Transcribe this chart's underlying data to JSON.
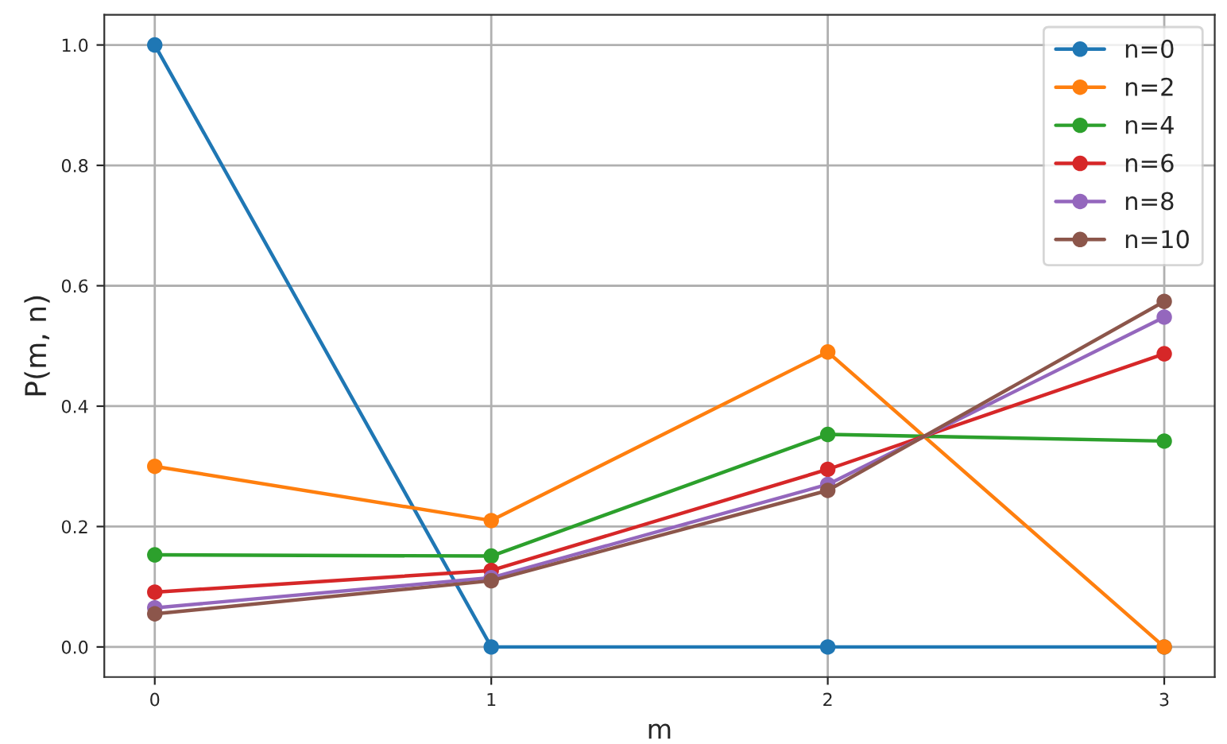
{
  "chart_data": {
    "type": "line",
    "xlabel": "m",
    "ylabel": "P(m, n)",
    "x": [
      0,
      1,
      2,
      3
    ],
    "series": [
      {
        "name": "n=0",
        "color": "#1f77b4",
        "values": [
          1.0,
          0.0,
          0.0,
          0.0
        ]
      },
      {
        "name": "n=2",
        "color": "#ff7f0e",
        "values": [
          0.3,
          0.21,
          0.49,
          0.0
        ]
      },
      {
        "name": "n=4",
        "color": "#2ca02c",
        "values": [
          0.153,
          0.151,
          0.353,
          0.342
        ]
      },
      {
        "name": "n=6",
        "color": "#d62728",
        "values": [
          0.091,
          0.127,
          0.295,
          0.487
        ]
      },
      {
        "name": "n=8",
        "color": "#9467bd",
        "values": [
          0.065,
          0.115,
          0.27,
          0.548
        ]
      },
      {
        "name": "n=10",
        "color": "#8c564b",
        "values": [
          0.055,
          0.11,
          0.26,
          0.574
        ]
      }
    ],
    "xlim": [
      -0.15,
      3.15
    ],
    "ylim": [
      -0.05,
      1.05
    ],
    "xticks": [
      0,
      1,
      2,
      3
    ],
    "yticks": [
      {
        "value": 0,
        "label": "0.0"
      },
      {
        "value": 0.2,
        "label": "0.2"
      },
      {
        "value": 0.4,
        "label": "0.4"
      },
      {
        "value": 0.6,
        "label": "0.6"
      },
      {
        "value": 0.8,
        "label": "0.8"
      },
      {
        "value": 1.0,
        "label": "1.0"
      }
    ],
    "grid": true,
    "legend": "top right",
    "marker": "circle",
    "line_style": "solid"
  }
}
